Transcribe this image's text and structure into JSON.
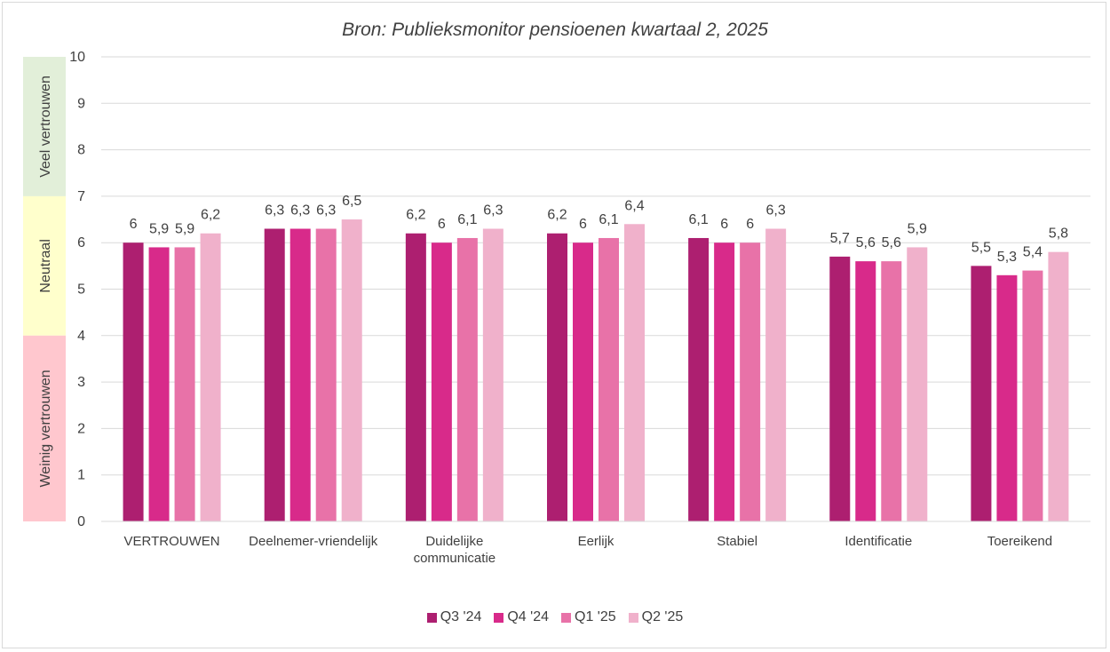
{
  "chart_data": {
    "type": "bar",
    "title": "Bron: Publieksmonitor pensioenen kwartaal 2, 2025",
    "categories": [
      "VERTROUWEN",
      "Deelnemer-vriendelijk",
      "Duidelijke communicatie",
      "Eerlijk",
      "Stabiel",
      "Identificatie",
      "Toereikend"
    ],
    "category_lines": [
      [
        "VERTROUWEN"
      ],
      [
        "Deelnemer-vriendelijk"
      ],
      [
        "Duidelijke",
        "communicatie"
      ],
      [
        "Eerlijk"
      ],
      [
        "Stabiel"
      ],
      [
        "Identificatie"
      ],
      [
        "Toereikend"
      ]
    ],
    "series": [
      {
        "name": "Q3 '24",
        "color": "#ad1f70",
        "values": [
          6,
          6.3,
          6.2,
          6.2,
          6.1,
          5.7,
          5.5
        ],
        "labels": [
          "6",
          "6,3",
          "6,2",
          "6,2",
          "6,1",
          "5,7",
          "5,5"
        ]
      },
      {
        "name": "Q4 '24",
        "color": "#d82a8a",
        "values": [
          5.9,
          6.3,
          6,
          6,
          6,
          5.6,
          5.3
        ],
        "labels": [
          "5,9",
          "6,3",
          "6",
          "6",
          "6",
          "5,6",
          "5,3"
        ]
      },
      {
        "name": "Q1 '25",
        "color": "#e872a8",
        "values": [
          5.9,
          6.3,
          6.1,
          6.1,
          6,
          5.6,
          5.4
        ],
        "labels": [
          "5,9",
          "6,3",
          "6,1",
          "6,1",
          "6",
          "5,6",
          "5,4"
        ]
      },
      {
        "name": "Q2 '25",
        "color": "#f0b1cb",
        "values": [
          6.2,
          6.5,
          6.3,
          6.4,
          6.3,
          5.9,
          5.8
        ],
        "labels": [
          "6,2",
          "6,5",
          "6,3",
          "6,4",
          "6,3",
          "5,9",
          "5,8"
        ]
      }
    ],
    "ylim": [
      0,
      10
    ],
    "yticks": [
      0,
      1,
      2,
      3,
      4,
      5,
      6,
      7,
      8,
      9,
      10
    ],
    "grid": true,
    "legend": "bottom",
    "bands": [
      {
        "label": "Veel vertrouwen",
        "from": 7,
        "to": 10,
        "color": "#e2efd9"
      },
      {
        "label": "Neutraal",
        "from": 4,
        "to": 7,
        "color": "#ffffcc"
      },
      {
        "label": "Weinig vertrouwen",
        "from": 0,
        "to": 4,
        "color": "#ffc7ce"
      }
    ]
  }
}
